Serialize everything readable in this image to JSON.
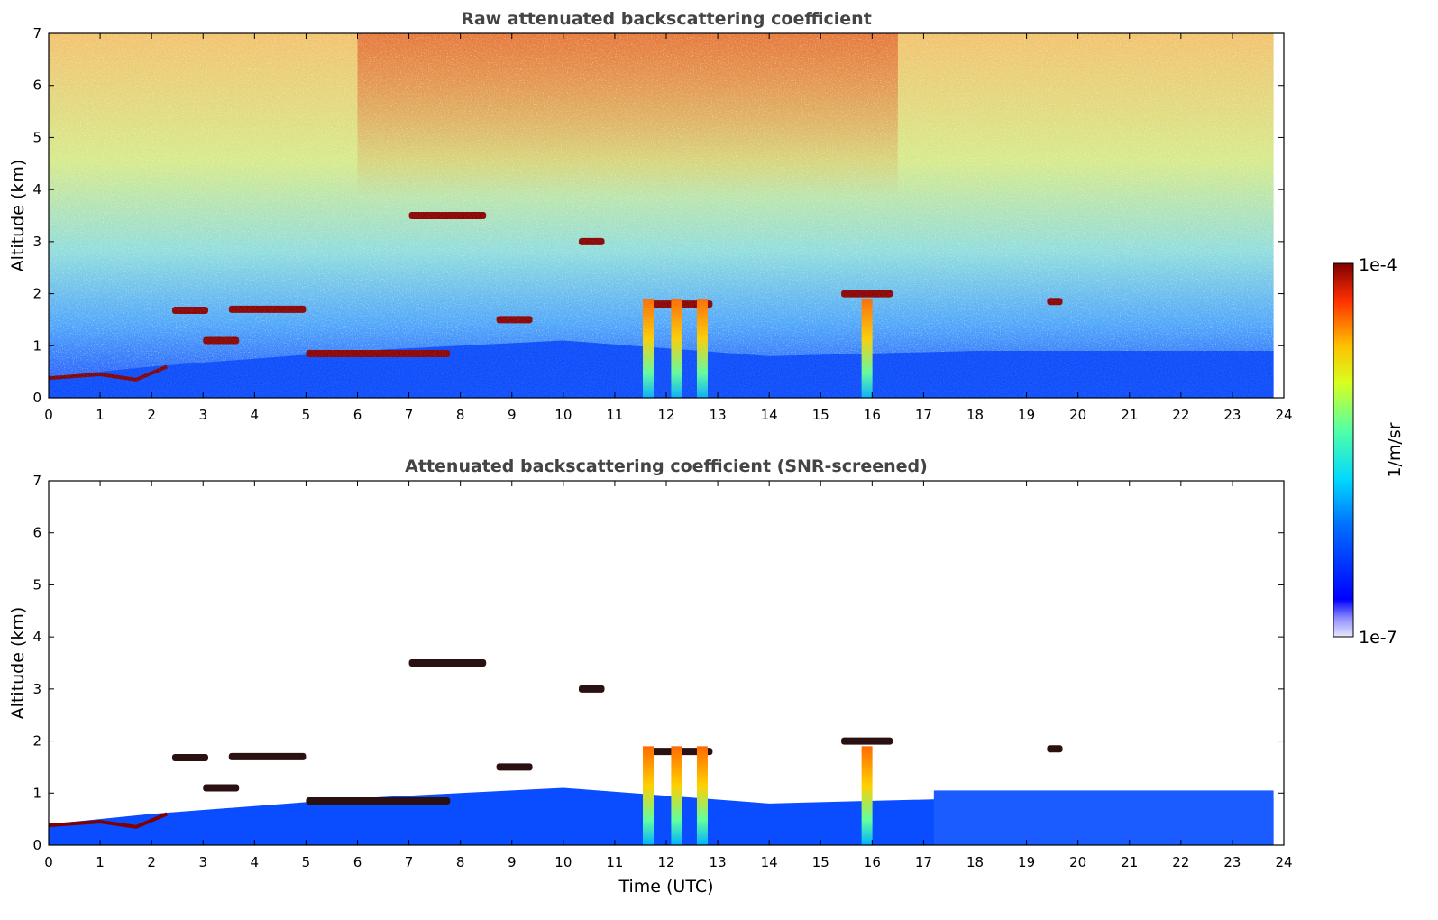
{
  "chart_data": [
    {
      "type": "heatmap",
      "title": "Raw attenuated backscattering coefficient",
      "xlabel": "",
      "ylabel": "Altitude (km)",
      "xlim": [
        0,
        24
      ],
      "ylim": [
        0,
        7
      ],
      "x_ticks": [
        "0",
        "1",
        "2",
        "3",
        "4",
        "5",
        "6",
        "7",
        "8",
        "9",
        "10",
        "11",
        "12",
        "13",
        "14",
        "15",
        "16",
        "17",
        "18",
        "19",
        "20",
        "21",
        "22",
        "23",
        "24"
      ],
      "y_ticks": [
        "0",
        "1",
        "2",
        "3",
        "4",
        "5",
        "6",
        "7"
      ],
      "colorscale": "jet",
      "grid": false,
      "features": {
        "boundary_layer_top_km": [
          [
            0,
            0.4
          ],
          [
            2,
            0.6
          ],
          [
            6,
            0.9
          ],
          [
            10,
            1.1
          ],
          [
            14,
            0.8
          ],
          [
            18,
            0.9
          ],
          [
            23.8,
            0.9
          ]
        ],
        "cloud_layers": [
          {
            "t": [
              2.4,
              3.1
            ],
            "alt_km": 1.68
          },
          {
            "t": [
              3.5,
              5.0
            ],
            "alt_km": 1.7
          },
          {
            "t": [
              3.0,
              3.7
            ],
            "alt_km": 1.1
          },
          {
            "t": [
              5.0,
              7.8
            ],
            "alt_km": 0.85
          },
          {
            "t": [
              7.0,
              8.5
            ],
            "alt_km": 3.5
          },
          {
            "t": [
              8.7,
              9.4
            ],
            "alt_km": 1.5
          },
          {
            "t": [
              10.3,
              10.8
            ],
            "alt_km": 3.0
          },
          {
            "t": [
              11.6,
              12.9
            ],
            "alt_km": 1.8
          },
          {
            "t": [
              15.4,
              16.4
            ],
            "alt_km": 2.0
          },
          {
            "t": [
              19.4,
              19.7
            ],
            "alt_km": 1.85
          }
        ],
        "precipitation_columns_h": [
          11.65,
          12.2,
          12.7,
          15.9
        ]
      }
    },
    {
      "type": "heatmap",
      "title": "Attenuated backscattering coefficient (SNR-screened)",
      "xlabel": "Time (UTC)",
      "ylabel": "Altitude (km)",
      "xlim": [
        0,
        24
      ],
      "ylim": [
        0,
        7
      ],
      "x_ticks": [
        "0",
        "1",
        "2",
        "3",
        "4",
        "5",
        "6",
        "7",
        "8",
        "9",
        "10",
        "11",
        "12",
        "13",
        "14",
        "15",
        "16",
        "17",
        "18",
        "19",
        "20",
        "21",
        "22",
        "23",
        "24"
      ],
      "y_ticks": [
        "0",
        "1",
        "2",
        "3",
        "4",
        "5",
        "6",
        "7"
      ],
      "colorscale": "jet",
      "grid": false
    }
  ],
  "colorbar": {
    "label": "1/m/sr",
    "max_label": "1e-4",
    "min_label": "1e-7",
    "log_min": -7,
    "log_max": -4
  },
  "colors": {
    "axis": "#000000",
    "title": "#444444",
    "jet_dark_red": "#800000",
    "jet_blue": "#0033ff"
  }
}
